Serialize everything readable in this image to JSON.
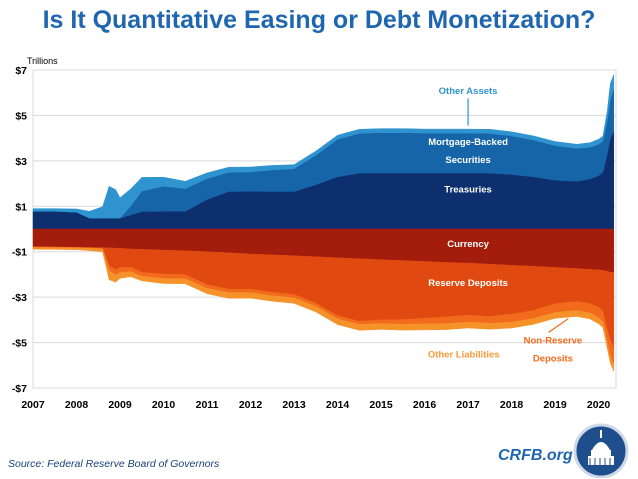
{
  "title": "Is It Quantitative Easing or Debt Monetization?",
  "source": "Source: Federal Reserve Board of Governors",
  "brand": "CRFB.org",
  "logo_icon": "capitol-dome-seal-icon",
  "colors": {
    "title": "#1f66b0",
    "treasuries": "#0d2f6e",
    "mbs": "#1565a8",
    "other_assets": "#2f93d0",
    "currency": "#a31c0c",
    "reserves": "#e04a10",
    "other_liabilities": "#f6922a",
    "non_reserve": "#f26a1b",
    "grid": "#d9d9d9",
    "label_blue": "#2f93d0",
    "label_orange": "#f49a3c"
  },
  "chart_data": {
    "type": "area",
    "title": "Is It Quantitative Easing or Debt Monetization?",
    "ylabel": "Trillions",
    "xlim": [
      2007,
      2020.4
    ],
    "ylim": [
      -7,
      7
    ],
    "x_ticks": [
      2007,
      2008,
      2009,
      2010,
      2011,
      2012,
      2013,
      2014,
      2015,
      2016,
      2017,
      2018,
      2019,
      2020
    ],
    "x_tick_labels": [
      "2007",
      "2008",
      "2009",
      "2010",
      "2011",
      "2012",
      "2013",
      "2014",
      "2015",
      "2016",
      "2017",
      "2018",
      "2019",
      "2020"
    ],
    "y_ticks": [
      7,
      5,
      3,
      1,
      -1,
      -3,
      -5,
      -7
    ],
    "y_tick_labels": [
      "$7",
      "$5",
      "$3",
      "$1",
      "-$1",
      "-$3",
      "-$5",
      "-$7"
    ],
    "x": [
      2007.0,
      2007.5,
      2008.0,
      2008.3,
      2008.6,
      2008.75,
      2008.9,
      2009.0,
      2009.25,
      2009.5,
      2010.0,
      2010.5,
      2011.0,
      2011.5,
      2012.0,
      2012.5,
      2013.0,
      2013.5,
      2014.0,
      2014.5,
      2015.0,
      2015.5,
      2016.0,
      2016.5,
      2017.0,
      2017.5,
      2018.0,
      2018.5,
      2019.0,
      2019.5,
      2019.8,
      2020.0,
      2020.1,
      2020.2,
      2020.27,
      2020.35
    ],
    "series_assets": [
      {
        "name": "Treasuries",
        "values": [
          0.78,
          0.78,
          0.74,
          0.48,
          0.48,
          0.48,
          0.48,
          0.48,
          0.62,
          0.77,
          0.78,
          0.78,
          1.3,
          1.65,
          1.66,
          1.65,
          1.65,
          1.95,
          2.3,
          2.46,
          2.46,
          2.46,
          2.46,
          2.46,
          2.46,
          2.46,
          2.4,
          2.3,
          2.15,
          2.1,
          2.2,
          2.35,
          2.5,
          3.3,
          4.0,
          4.3
        ]
      },
      {
        "name": "Mortgage-Backed Securities",
        "values": [
          0,
          0,
          0,
          0,
          0,
          0,
          0,
          0,
          0.4,
          0.9,
          1.1,
          1.0,
          0.92,
          0.85,
          0.85,
          0.95,
          1.0,
          1.3,
          1.65,
          1.75,
          1.78,
          1.78,
          1.76,
          1.76,
          1.76,
          1.75,
          1.7,
          1.62,
          1.52,
          1.45,
          1.4,
          1.38,
          1.37,
          1.5,
          1.7,
          1.9
        ]
      },
      {
        "name": "Other Assets",
        "values": [
          0.12,
          0.12,
          0.14,
          0.3,
          0.5,
          1.4,
          1.25,
          0.9,
          0.75,
          0.6,
          0.4,
          0.32,
          0.25,
          0.22,
          0.22,
          0.2,
          0.18,
          0.18,
          0.18,
          0.18,
          0.18,
          0.18,
          0.18,
          0.18,
          0.18,
          0.18,
          0.18,
          0.18,
          0.18,
          0.18,
          0.2,
          0.22,
          0.22,
          0.4,
          0.7,
          0.6
        ]
      }
    ],
    "series_liabilities": [
      {
        "name": "Currency",
        "values": [
          0.78,
          0.79,
          0.8,
          0.81,
          0.82,
          0.83,
          0.84,
          0.85,
          0.88,
          0.9,
          0.93,
          0.96,
          1.0,
          1.05,
          1.1,
          1.14,
          1.18,
          1.22,
          1.27,
          1.31,
          1.35,
          1.39,
          1.43,
          1.47,
          1.5,
          1.55,
          1.6,
          1.64,
          1.69,
          1.74,
          1.78,
          1.8,
          1.82,
          1.86,
          1.9,
          1.92
        ]
      },
      {
        "name": "Reserve Deposits",
        "values": [
          0.01,
          0.01,
          0.01,
          0.02,
          0.04,
          0.8,
          0.95,
          0.85,
          0.8,
          1.0,
          1.05,
          1.05,
          1.45,
          1.6,
          1.55,
          1.65,
          1.7,
          2.05,
          2.55,
          2.75,
          2.65,
          2.6,
          2.5,
          2.4,
          2.3,
          2.3,
          2.15,
          1.95,
          1.6,
          1.45,
          1.5,
          1.65,
          1.8,
          2.6,
          3.0,
          3.3
        ]
      },
      {
        "name": "Non-Reserve Deposits",
        "values": [
          0.02,
          0.02,
          0.02,
          0.02,
          0.02,
          0.2,
          0.25,
          0.22,
          0.2,
          0.18,
          0.2,
          0.18,
          0.16,
          0.15,
          0.15,
          0.15,
          0.15,
          0.14,
          0.14,
          0.14,
          0.16,
          0.2,
          0.25,
          0.3,
          0.3,
          0.3,
          0.35,
          0.35,
          0.38,
          0.4,
          0.42,
          0.45,
          0.45,
          0.5,
          0.7,
          0.75
        ]
      },
      {
        "name": "Other Liabilities",
        "values": [
          0.08,
          0.08,
          0.08,
          0.1,
          0.12,
          0.4,
          0.3,
          0.25,
          0.22,
          0.2,
          0.22,
          0.22,
          0.24,
          0.25,
          0.24,
          0.24,
          0.24,
          0.24,
          0.25,
          0.26,
          0.26,
          0.26,
          0.26,
          0.26,
          0.26,
          0.26,
          0.26,
          0.26,
          0.26,
          0.26,
          0.26,
          0.27,
          0.27,
          0.3,
          0.3,
          0.3
        ]
      }
    ],
    "annotations": [
      {
        "name": "Treasuries",
        "text": "Treasuries",
        "x": 2017.0,
        "y": 1.6
      },
      {
        "name": "Mortgage-Backed Securities",
        "text": "Mortgage-Backed",
        "text2": "Securities",
        "x": 2017.0,
        "y": 3.7
      },
      {
        "name": "Other Assets",
        "text": "Other Assets",
        "x": 2017.0,
        "y": 5.95
      },
      {
        "name": "Currency",
        "text": "Currency",
        "x": 2017.0,
        "y": -0.8
      },
      {
        "name": "Reserve Deposits",
        "text": "Reserve Deposits",
        "x": 2017.0,
        "y": -2.5
      },
      {
        "name": "Other Liabilities",
        "text": "Other Liabilities",
        "x": 2016.9,
        "y": -5.65
      },
      {
        "name": "Non-Reserve Deposits",
        "text": "Non-Reserve",
        "text2": "Deposits",
        "x": 2018.95,
        "y": -5.05
      }
    ]
  }
}
